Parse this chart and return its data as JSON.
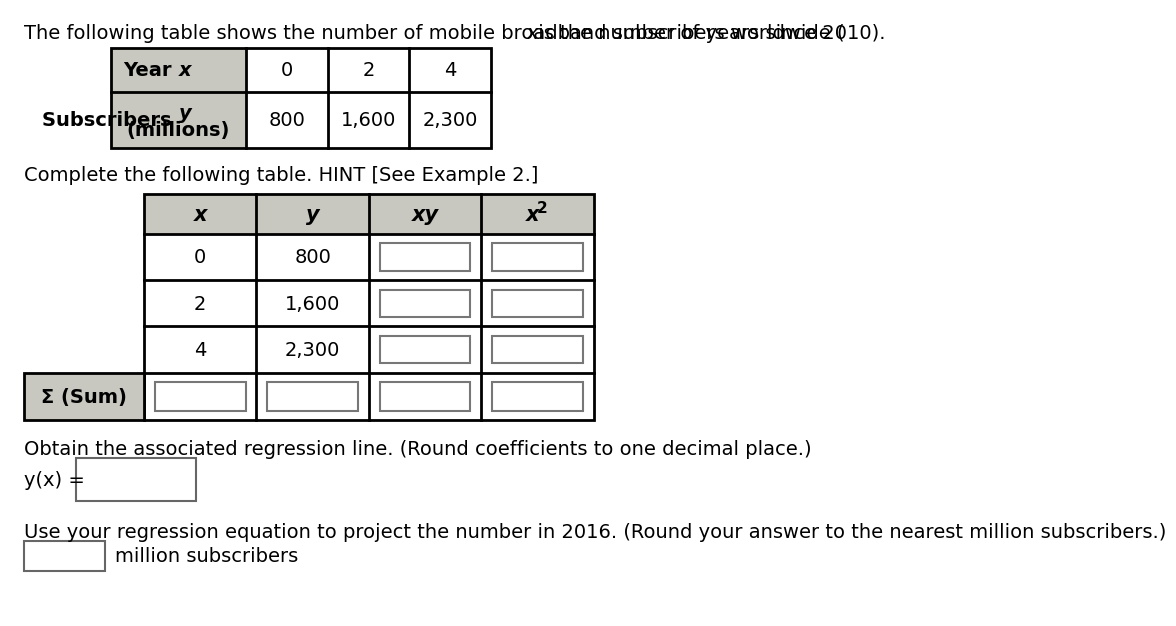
{
  "title_text": "The following table shows the number of mobile broadband subscribers worldwide ( x is the number of years since 2010).",
  "top_table": {
    "header_row1": "Year x",
    "header_row2": "Subscribers y\n(millions)",
    "x_vals": [
      "0",
      "2",
      "4"
    ],
    "y_vals": [
      "800",
      "1,600",
      "2,300"
    ],
    "header_bg": "#c8c8c0",
    "border_color": "#000000"
  },
  "complete_label": "Complete the following table. HINT [See Example 2.]",
  "second_table": {
    "headers": [
      "x",
      "y",
      "xy",
      "x2"
    ],
    "rows": [
      [
        "0",
        "800"
      ],
      [
        "2",
        "1,600"
      ],
      [
        "4",
        "2,300"
      ]
    ],
    "sum_label": "Σ (Sum)",
    "header_bg": "#c8c8c0",
    "border_color": "#000000"
  },
  "regression_label": "Obtain the associated regression line. (Round coefficients to one decimal place.)",
  "yx_label": "y(x) =",
  "projection_label": "Use your regression equation to project the number in 2016. (Round your answer to the nearest million subscribers.)",
  "million_label": "million subscribers",
  "bg_color": "#ffffff",
  "font_size": 14,
  "small_font": 12,
  "text_color": "#000000"
}
